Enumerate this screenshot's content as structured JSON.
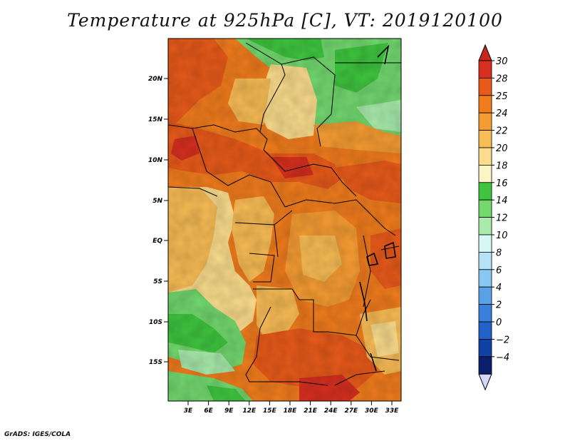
{
  "title": "Temperature at 925hPa [C], VT: 2019120100",
  "credit": "GrADS: IGES/COLA",
  "map": {
    "lat_labels": [
      "20N",
      "15N",
      "10N",
      "5N",
      "EQ",
      "5S",
      "10S",
      "15S"
    ],
    "lon_labels": [
      "3E",
      "6E",
      "9E",
      "12E",
      "15E",
      "18E",
      "21E",
      "24E",
      "27E",
      "30E",
      "33E"
    ]
  },
  "colorbar": {
    "labels": [
      "30",
      "28",
      "25",
      "24",
      "22",
      "20",
      "18",
      "16",
      "14",
      "12",
      "10",
      "8",
      "6",
      "4",
      "2",
      "0",
      "−2",
      "−4"
    ],
    "colors": [
      "#d62f1f",
      "#e85a1a",
      "#f07c1d",
      "#f59c33",
      "#f8bc55",
      "#fbdc8c",
      "#fbf5c5",
      "#3ec43e",
      "#72d86e",
      "#a8ebab",
      "#d6f7f4",
      "#b5e2f7",
      "#87c7f2",
      "#5aa2e8",
      "#3b7fdc",
      "#2262c8",
      "#1241a5",
      "#0b1e6c"
    ],
    "top_color": "#c8281b",
    "bottom_color": "#d6d6ff"
  }
}
